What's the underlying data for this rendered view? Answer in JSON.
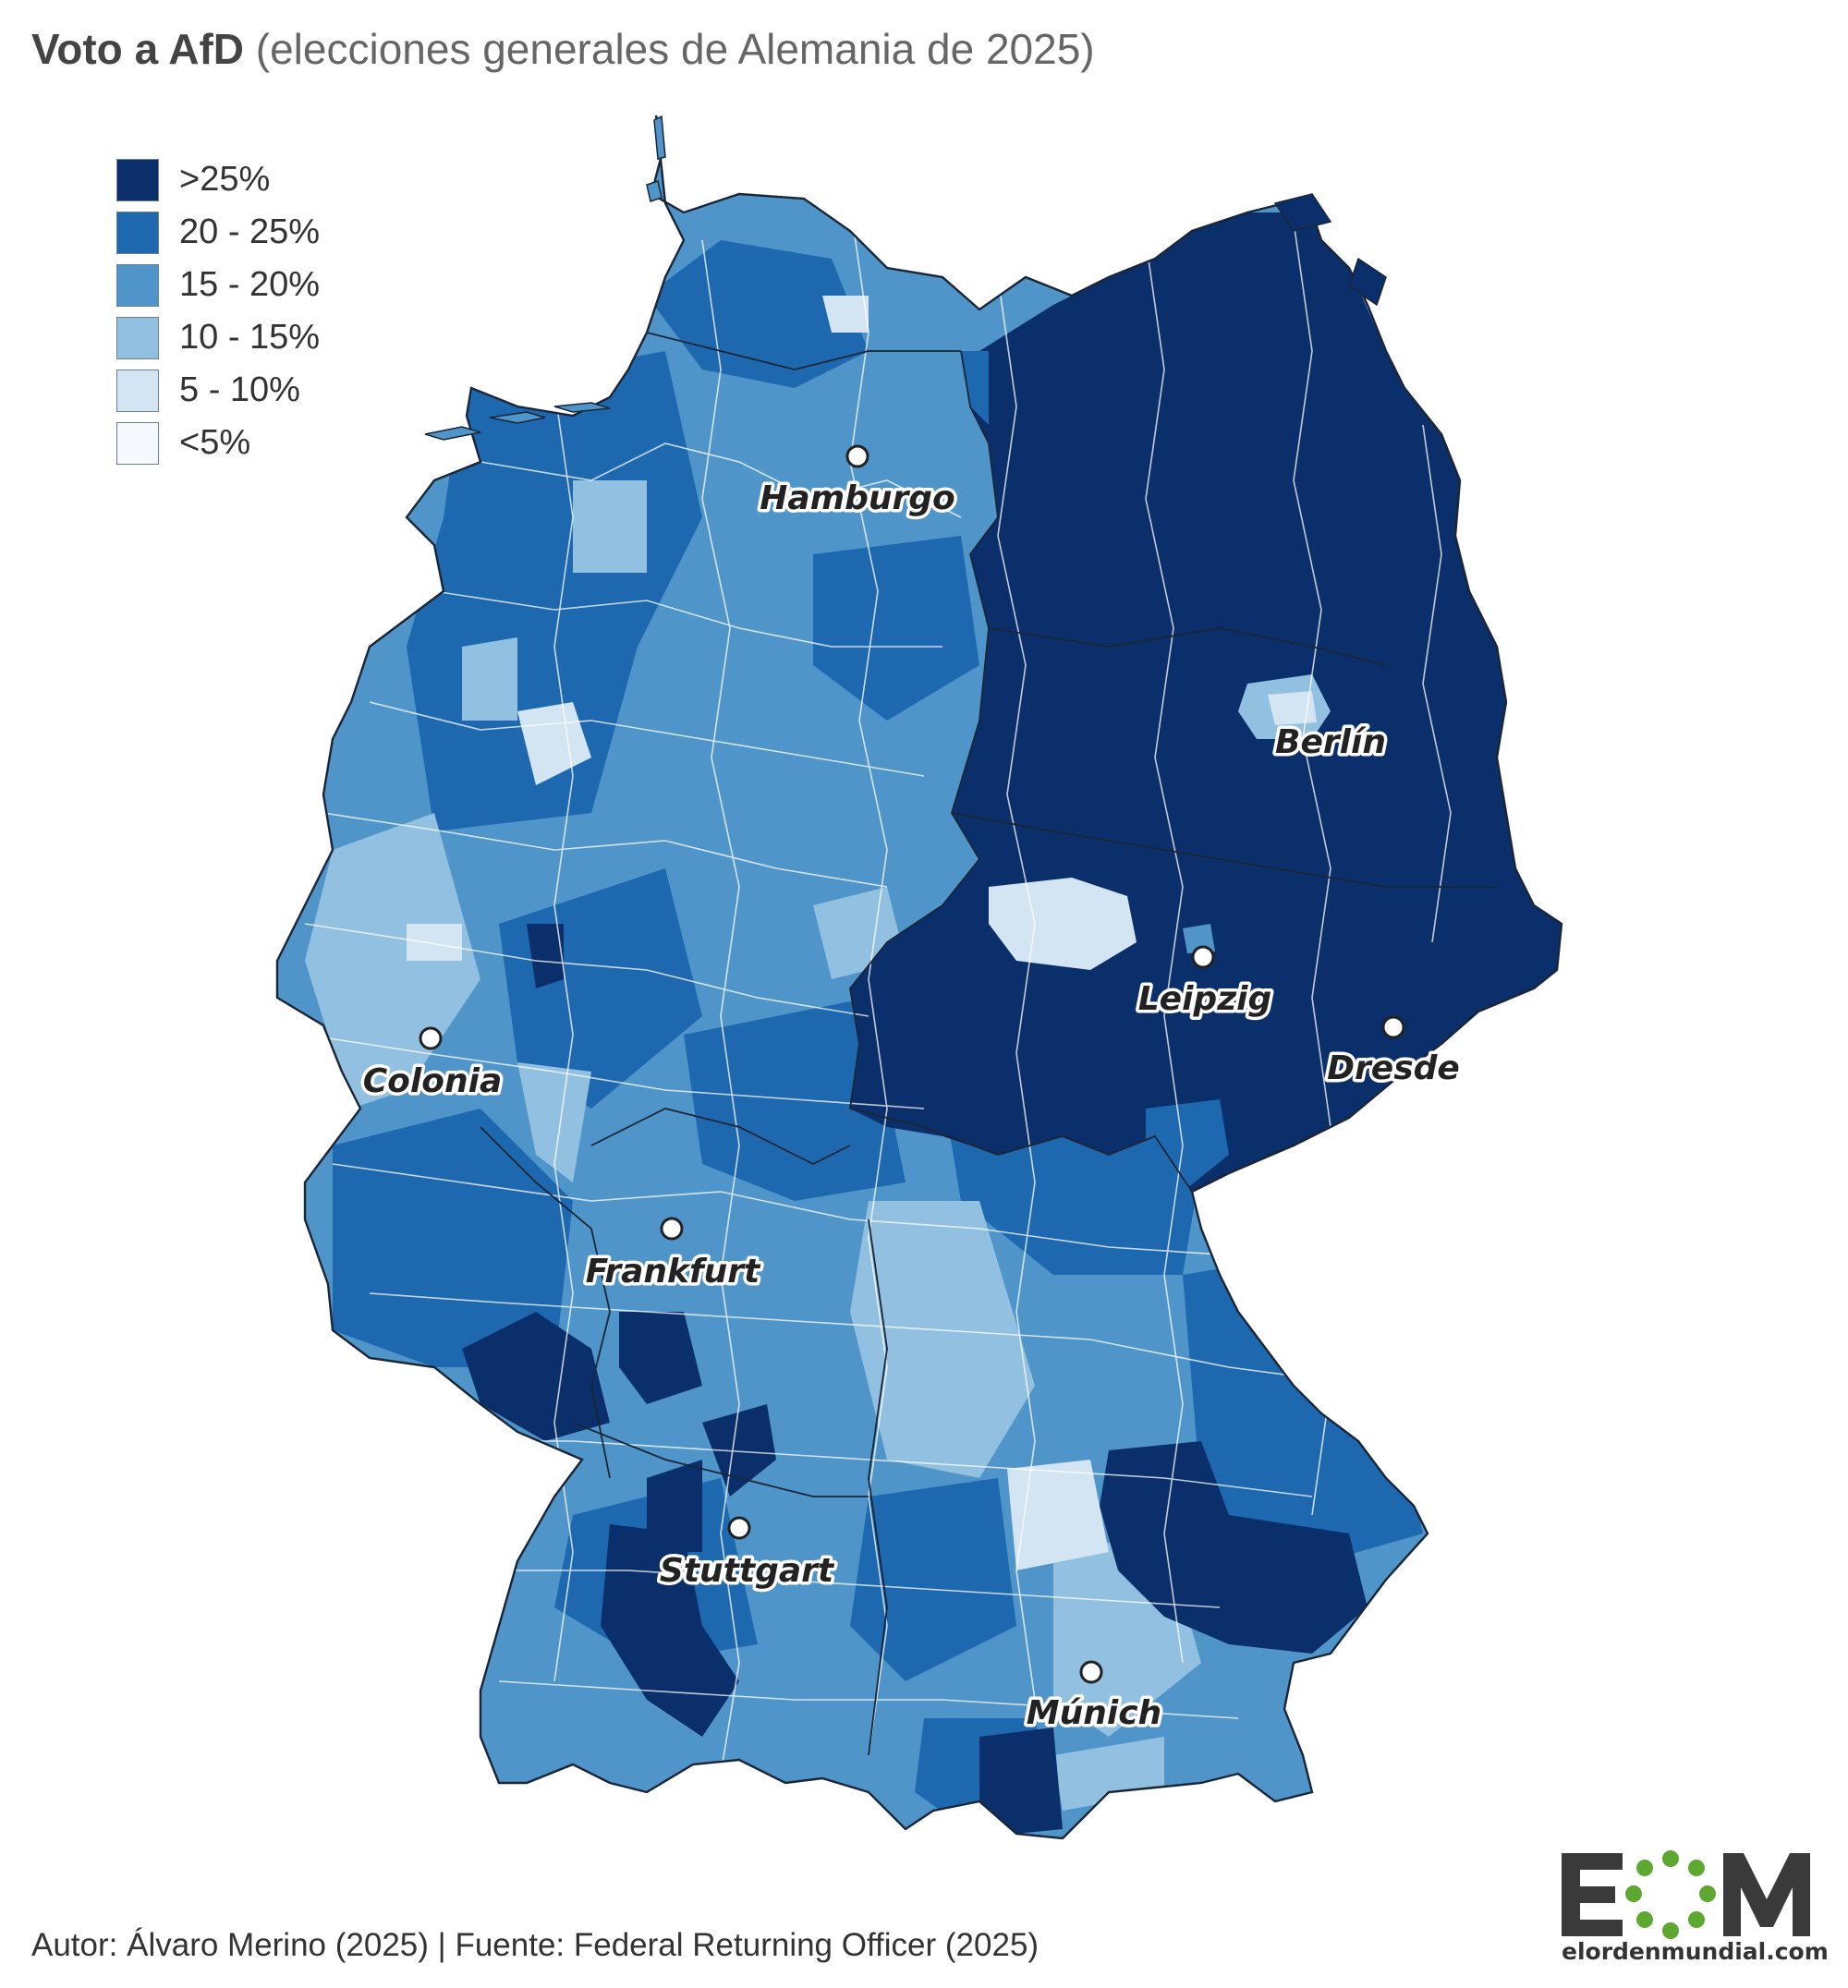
{
  "header": {
    "title_bold": "Voto a AfD",
    "title_rest": "(elecciones generales de Alemania de 2025)"
  },
  "legend": [
    {
      "label": ">25%",
      "color": "#0b2f6a"
    },
    {
      "label": "20 - 25%",
      "color": "#1e68b0"
    },
    {
      "label": "15 - 20%",
      "color": "#4f95c9"
    },
    {
      "label": "10 - 15%",
      "color": "#92c0e0"
    },
    {
      "label": "5 - 10%",
      "color": "#d3e4f3"
    },
    {
      "label": "<5%",
      "color": "#f5f9fd"
    }
  ],
  "cities": [
    {
      "name": "Hamburgo"
    },
    {
      "name": "Berlín"
    },
    {
      "name": "Leipzig"
    },
    {
      "name": "Dresde"
    },
    {
      "name": "Colonia"
    },
    {
      "name": "Frankfurt"
    },
    {
      "name": "Stuttgart"
    },
    {
      "name": "Múnich"
    }
  ],
  "footer": {
    "credit": "Autor: Álvaro Merino (2025) | Fuente: Federal Returning Officer (2025)"
  },
  "logo": {
    "text": "EOM",
    "url_text": "elordenmundial.com"
  }
}
